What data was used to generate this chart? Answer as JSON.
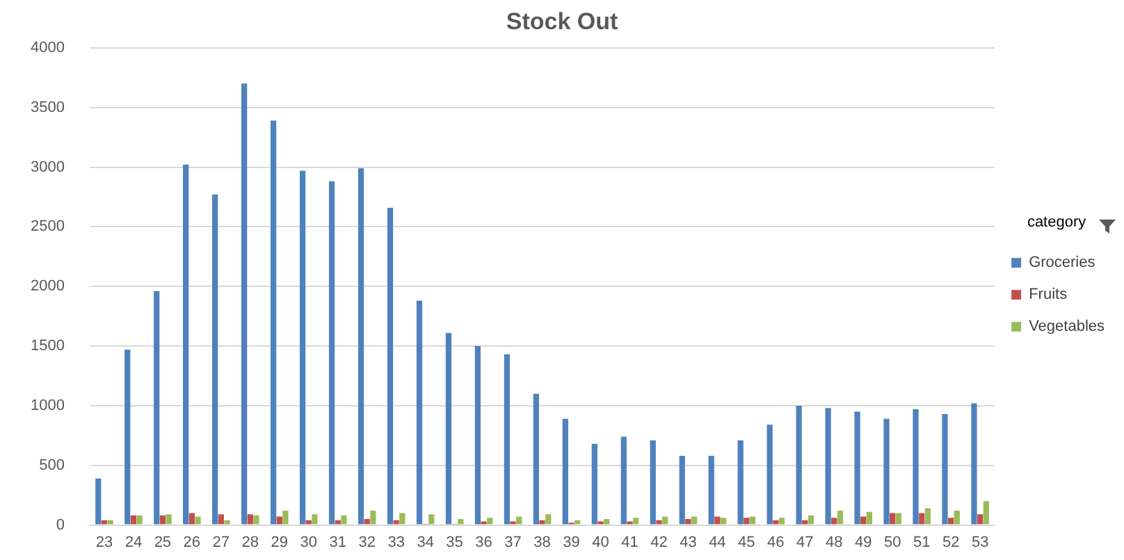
{
  "chart_data": {
    "type": "bar",
    "title": "Stock Out",
    "legend_title": "category",
    "categories": [
      "23",
      "24",
      "25",
      "26",
      "27",
      "28",
      "29",
      "30",
      "31",
      "32",
      "33",
      "34",
      "35",
      "36",
      "37",
      "38",
      "39",
      "40",
      "41",
      "42",
      "43",
      "44",
      "45",
      "46",
      "47",
      "48",
      "49",
      "50",
      "51",
      "52",
      "53"
    ],
    "series": [
      {
        "name": "Groceries",
        "color": "#4f81bd",
        "values": [
          390,
          1470,
          1960,
          3020,
          2770,
          3700,
          3390,
          2970,
          2880,
          2990,
          2660,
          1880,
          1610,
          1500,
          1430,
          1100,
          890,
          680,
          740,
          710,
          580,
          580,
          710,
          840,
          1000,
          980,
          950,
          890,
          970,
          930,
          1020
        ]
      },
      {
        "name": "Fruits",
        "color": "#c0504d",
        "values": [
          40,
          80,
          80,
          100,
          90,
          90,
          70,
          40,
          40,
          50,
          40,
          10,
          10,
          30,
          30,
          40,
          20,
          30,
          30,
          40,
          50,
          70,
          60,
          40,
          40,
          60,
          70,
          100,
          100,
          60,
          90
        ]
      },
      {
        "name": "Vegetables",
        "color": "#9bbb59",
        "values": [
          40,
          80,
          90,
          70,
          40,
          80,
          120,
          90,
          80,
          120,
          100,
          90,
          50,
          60,
          70,
          90,
          40,
          50,
          60,
          70,
          70,
          60,
          70,
          60,
          80,
          120,
          110,
          100,
          140,
          120,
          200
        ]
      }
    ],
    "ylim": [
      0,
      4000
    ],
    "yticks": [
      0,
      500,
      1000,
      1500,
      2000,
      2500,
      3000,
      3500,
      4000
    ],
    "grid": "y",
    "legend": "right"
  }
}
